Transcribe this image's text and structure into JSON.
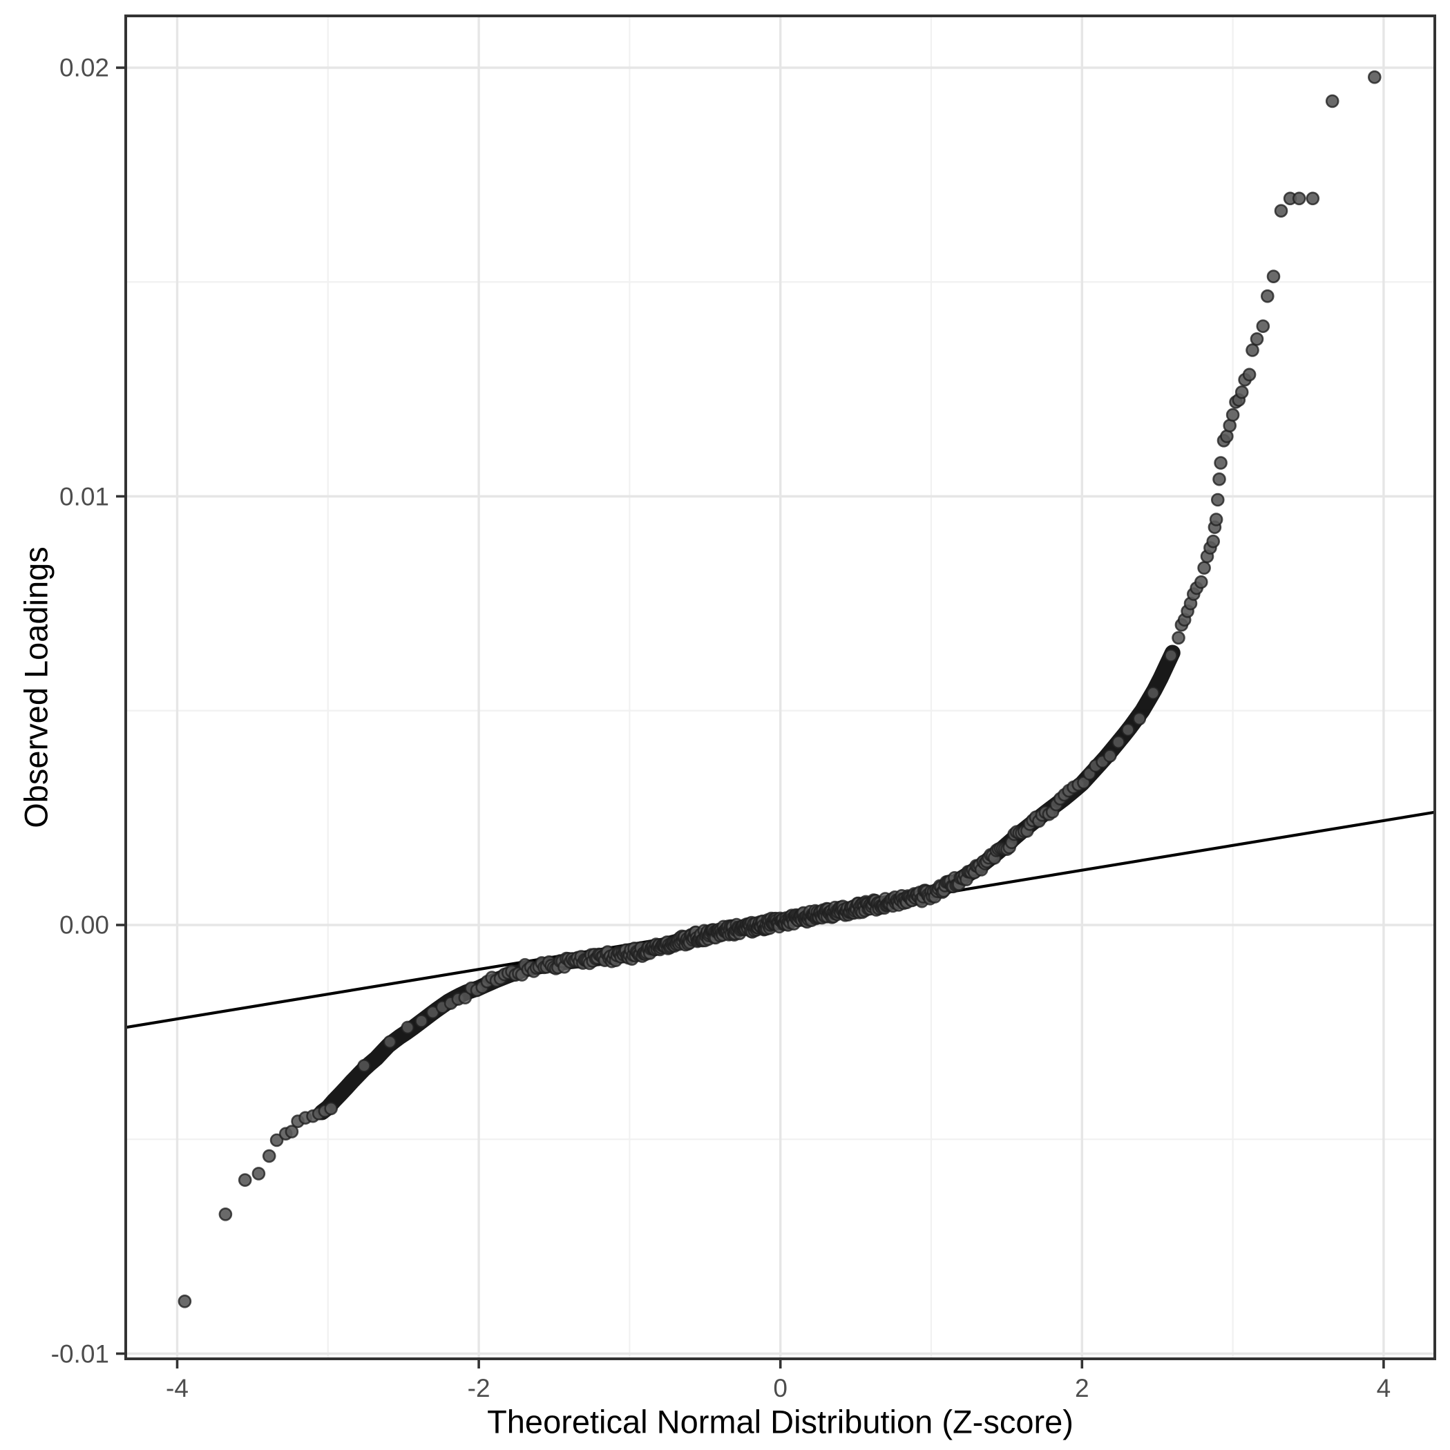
{
  "figure": {
    "kind": "qq-plot",
    "background": "#ffffff"
  },
  "axes": {
    "x": {
      "title": "Theoretical Normal Distribution (Z-score)",
      "tick_values": [
        -4,
        -2,
        0,
        2,
        4
      ],
      "tick_labels": [
        "-4",
        "-2",
        "0",
        "2",
        "4"
      ],
      "minor_values": [
        -3,
        -1,
        1,
        3
      ],
      "range": [
        -4.35,
        4.34
      ]
    },
    "y": {
      "title": "Observed Loadings",
      "tick_values": [
        0.02,
        0.01,
        0.0,
        -0.01
      ],
      "tick_labels": [
        "0.02",
        "0.01",
        "0.00",
        "-0.01"
      ],
      "minor_values": [
        0.015,
        0.005,
        -0.005
      ],
      "range": [
        -0.0101,
        0.0212
      ]
    }
  },
  "style": {
    "panel_border_color": "#333333",
    "tick_color": "#333333",
    "tick_label_color": "#4d4d4d",
    "axis_title_color": "#000000",
    "grid_major_color": "#e6e6e6",
    "grid_minor_color": "#f1f1f1",
    "line_color": "#000000",
    "point_fill": "#5a5a5a",
    "point_stroke": "#1f1f1f"
  },
  "chart_data": {
    "type": "scatter",
    "title": "",
    "xlabel": "Theoretical Normal Distribution (Z-score)",
    "ylabel": "Observed Loadings",
    "xlim": [
      -4.35,
      4.34
    ],
    "ylim": [
      -0.0101,
      0.0212
    ],
    "grid": "on",
    "legend": "none",
    "qq_line": {
      "x": [
        -4.343,
        4.337
      ],
      "y": [
        -0.00239,
        0.00263
      ]
    },
    "curve_anchors": [
      [
        -3.3,
        -0.00488
      ],
      [
        -3.2,
        -0.00456
      ],
      [
        -3.1,
        -0.00445
      ],
      [
        -3.02,
        -0.00434
      ],
      [
        -2.96,
        -0.0041
      ],
      [
        -2.9,
        -0.00388
      ],
      [
        -2.83,
        -0.00361
      ],
      [
        -2.75,
        -0.00332
      ],
      [
        -2.67,
        -0.00308
      ],
      [
        -2.61,
        -0.00284
      ],
      [
        -2.53,
        -0.00262
      ],
      [
        -2.46,
        -0.00246
      ],
      [
        -2.37,
        -0.00222
      ],
      [
        -2.28,
        -0.00198
      ],
      [
        -2.19,
        -0.00176
      ],
      [
        -2.09,
        -0.00158
      ],
      [
        -2.0,
        -0.00147
      ],
      [
        -1.9,
        -0.00131
      ],
      [
        -1.8,
        -0.00117
      ],
      [
        -1.7,
        -0.00104
      ],
      [
        -1.55,
        -0.00093
      ],
      [
        -1.4,
        -0.00085
      ],
      [
        -1.2,
        -0.00077
      ],
      [
        -1.0,
        -0.00069
      ],
      [
        -0.85,
        -0.00056
      ],
      [
        -0.7,
        -0.0004
      ],
      [
        -0.55,
        -0.00028
      ],
      [
        -0.4,
        -0.00017
      ],
      [
        -0.2,
        -5e-05
      ],
      [
        0.0,
        8e-05
      ],
      [
        0.2,
        0.0002
      ],
      [
        0.4,
        0.00032
      ],
      [
        0.6,
        0.00045
      ],
      [
        0.8,
        0.00056
      ],
      [
        1.0,
        0.00072
      ],
      [
        1.15,
        0.00098
      ],
      [
        1.3,
        0.0013
      ],
      [
        1.45,
        0.00172
      ],
      [
        1.6,
        0.00218
      ],
      [
        1.75,
        0.0026
      ],
      [
        1.9,
        0.003
      ],
      [
        2.0,
        0.0033
      ],
      [
        2.15,
        0.00388
      ],
      [
        2.3,
        0.00452
      ],
      [
        2.4,
        0.005
      ],
      [
        2.5,
        0.0056
      ],
      [
        2.62,
        0.0065
      ]
    ],
    "left_tail_points": [
      [
        -3.95,
        -0.00878
      ],
      [
        -3.68,
        -0.00675
      ],
      [
        -3.55,
        -0.00595
      ],
      [
        -3.46,
        -0.0058
      ],
      [
        -3.39,
        -0.00539
      ],
      [
        -3.34,
        -0.00502
      ],
      [
        -3.28,
        -0.00487
      ],
      [
        -3.24,
        -0.00482
      ],
      [
        -3.2,
        -0.00458
      ],
      [
        -3.15,
        -0.0045
      ],
      [
        -3.1,
        -0.00446
      ],
      [
        -3.06,
        -0.0044
      ],
      [
        -3.02,
        -0.00434
      ],
      [
        -2.98,
        -0.00428
      ]
    ],
    "right_tail_points": [
      [
        2.64,
        0.0067
      ],
      [
        2.66,
        0.007
      ],
      [
        2.68,
        0.00712
      ],
      [
        2.7,
        0.00732
      ],
      [
        2.72,
        0.0075
      ],
      [
        2.74,
        0.00772
      ],
      [
        2.76,
        0.00786
      ],
      [
        2.79,
        0.008
      ],
      [
        2.81,
        0.00833
      ],
      [
        2.83,
        0.0086
      ],
      [
        2.85,
        0.0088
      ],
      [
        2.87,
        0.00895
      ],
      [
        2.88,
        0.00928
      ],
      [
        2.89,
        0.00946
      ],
      [
        2.9,
        0.00992
      ],
      [
        2.91,
        0.0104
      ],
      [
        2.92,
        0.01078
      ],
      [
        2.94,
        0.0113
      ],
      [
        2.96,
        0.0114
      ],
      [
        2.98,
        0.01165
      ],
      [
        3.0,
        0.0119
      ],
      [
        3.02,
        0.0122
      ],
      [
        3.04,
        0.01225
      ],
      [
        3.06,
        0.01243
      ],
      [
        3.08,
        0.01272
      ],
      [
        3.11,
        0.01284
      ],
      [
        3.13,
        0.01341
      ],
      [
        3.16,
        0.01367
      ],
      [
        3.2,
        0.01397
      ],
      [
        3.23,
        0.01467
      ],
      [
        3.27,
        0.01513
      ],
      [
        3.32,
        0.01666
      ],
      [
        3.38,
        0.01695
      ],
      [
        3.44,
        0.01695
      ],
      [
        3.53,
        0.01695
      ],
      [
        3.66,
        0.01922
      ],
      [
        3.94,
        0.01978
      ]
    ],
    "n_points": 520,
    "point_style": {
      "radius_px": 8.5,
      "jitter_y": 0.00012
    }
  }
}
